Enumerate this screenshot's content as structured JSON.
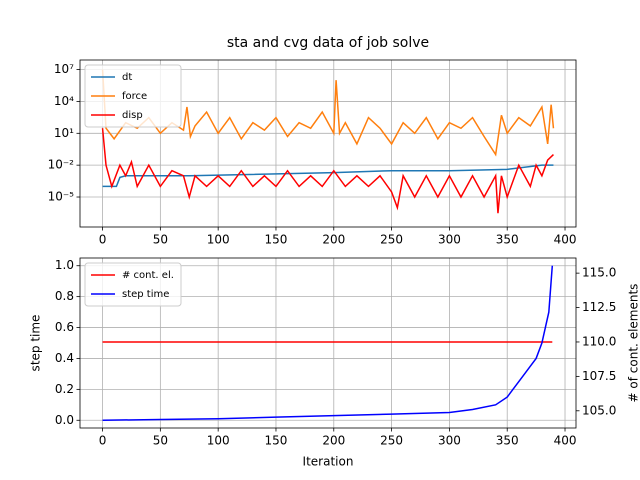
{
  "chart_data": [
    {
      "type": "line",
      "title": "sta and cvg data of job solve",
      "log_y": true,
      "grid": true,
      "legend": "upper left",
      "xlim": [
        -19.5,
        409.5
      ],
      "xticks": [
        0,
        50,
        100,
        150,
        200,
        250,
        300,
        350,
        400
      ],
      "ylim": [
        1.5e-08,
        80000000.0
      ],
      "yticks": [
        {
          "value": 1e-05,
          "label": "10⁻⁵"
        },
        {
          "value": 0.01,
          "label": "10⁻²"
        },
        {
          "value": 10,
          "label": "10¹"
        },
        {
          "value": 10000,
          "label": "10⁴"
        },
        {
          "value": 10000000,
          "label": "10⁷"
        }
      ],
      "series": [
        {
          "name": "dt",
          "color": "#1f77b4",
          "x": [
            0,
            5,
            12,
            15,
            20,
            60,
            70,
            75,
            200,
            250,
            300,
            350,
            380,
            390
          ],
          "values": [
            0.0001,
            0.0001,
            0.0001,
            0.0007,
            0.001,
            0.001,
            0.001,
            0.001,
            0.002,
            0.003,
            0.003,
            0.004,
            0.01,
            0.01
          ]
        },
        {
          "name": "force",
          "color": "#ff7f0e",
          "x": [
            0,
            3,
            10,
            20,
            30,
            40,
            50,
            60,
            70,
            73,
            76,
            80,
            90,
            100,
            110,
            120,
            130,
            140,
            150,
            160,
            170,
            180,
            190,
            200,
            202,
            205,
            210,
            220,
            230,
            240,
            250,
            260,
            270,
            280,
            290,
            300,
            310,
            320,
            330,
            340,
            345,
            350,
            360,
            370,
            380,
            385,
            388,
            390
          ],
          "values": [
            10000000,
            30,
            3,
            100,
            30,
            300,
            10,
            100,
            20,
            3000,
            5,
            50,
            1000,
            10,
            300,
            3,
            100,
            20,
            300,
            5,
            100,
            30,
            1000,
            10,
            1000000,
            10,
            100,
            1,
            300,
            30,
            1,
            100,
            10,
            300,
            3,
            100,
            30,
            300,
            5,
            0.1,
            500,
            10,
            300,
            50,
            3000,
            1,
            5000,
            30
          ]
        },
        {
          "name": "disp",
          "color": "#ff0000",
          "x": [
            0,
            3,
            8,
            15,
            20,
            25,
            30,
            40,
            50,
            60,
            70,
            75,
            80,
            90,
            100,
            110,
            120,
            130,
            140,
            150,
            160,
            170,
            180,
            190,
            200,
            210,
            220,
            230,
            240,
            250,
            255,
            260,
            270,
            280,
            290,
            300,
            310,
            320,
            330,
            340,
            342,
            345,
            350,
            360,
            370,
            375,
            380,
            385,
            390
          ],
          "values": [
            30,
            0.01,
            0.0001,
            0.01,
            0.001,
            0.02,
            0.0001,
            0.01,
            0.0001,
            0.003,
            0.001,
            1e-05,
            0.001,
            0.0001,
            0.001,
            0.0001,
            0.003,
            0.0001,
            0.001,
            0.0001,
            0.003,
            0.0001,
            0.001,
            0.0001,
            0.003,
            0.0001,
            0.001,
            0.0001,
            0.001,
            3e-05,
            1e-06,
            0.001,
            1e-05,
            0.001,
            1e-05,
            0.001,
            1e-05,
            0.001,
            1e-05,
            0.001,
            3e-07,
            0.001,
            1e-05,
            0.01,
            0.0001,
            0.01,
            0.001,
            0.03,
            0.1
          ]
        }
      ]
    },
    {
      "type": "line",
      "xlabel": "Iteration",
      "ylabel": "step time",
      "y2label": "# of cont. elements",
      "grid": true,
      "legend": "upper left",
      "xlim": [
        -19.5,
        409.5
      ],
      "xticks": [
        0,
        50,
        100,
        150,
        200,
        250,
        300,
        350,
        400
      ],
      "ylim": [
        -0.05,
        1.05
      ],
      "yticks": [
        {
          "value": 0,
          "label": "0.0"
        },
        0.2,
        0.4,
        0.6,
        0.8,
        {
          "value": 1,
          "label": "1.0"
        }
      ],
      "y2lim": [
        103.75,
        116.1
      ],
      "y2ticks": [
        {
          "value": 105,
          "label": "105.0"
        },
        107.5,
        {
          "value": 110,
          "label": "110.0"
        },
        112.5,
        {
          "value": 115,
          "label": "115.0"
        }
      ],
      "series": [
        {
          "name": "# cont. el.",
          "color": "#ff0000",
          "axis": "y2",
          "x": [
            0,
            389
          ],
          "values": [
            110,
            110
          ]
        },
        {
          "name": "step time",
          "color": "#0000ff",
          "x": [
            0,
            50,
            100,
            150,
            200,
            250,
            300,
            320,
            340,
            350,
            355,
            365,
            370,
            375,
            380,
            383,
            386,
            388,
            389
          ],
          "values": [
            0,
            0.005,
            0.01,
            0.02,
            0.03,
            0.04,
            0.05,
            0.07,
            0.1,
            0.15,
            0.2,
            0.3,
            0.35,
            0.4,
            0.5,
            0.6,
            0.7,
            0.9,
            1
          ]
        }
      ]
    }
  ]
}
